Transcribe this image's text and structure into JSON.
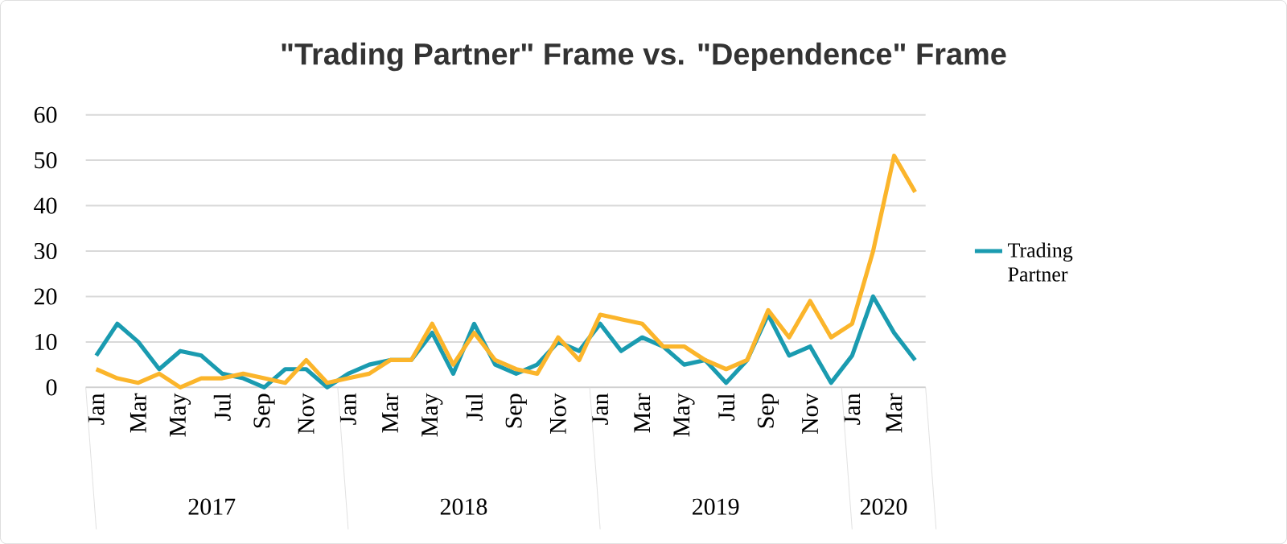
{
  "chart_data": {
    "type": "line",
    "title": "\"Trading Partner\" Frame vs. \"Dependence\" Frame",
    "categories": [
      "Jan",
      null,
      "Mar",
      null,
      "May",
      null,
      "Jul",
      null,
      "Sep",
      null,
      "Nov",
      null,
      "Jan",
      null,
      "Mar",
      null,
      "May",
      null,
      "Jul",
      null,
      "Sep",
      null,
      "Nov",
      null,
      "Jan",
      null,
      "Mar",
      null,
      "May",
      null,
      "Jul",
      null,
      "Sep",
      null,
      "Nov",
      null,
      "Jan",
      null,
      "Mar",
      null
    ],
    "series": [
      {
        "name": "Trading Partner",
        "color": "#1a9bb0",
        "values": [
          7,
          14,
          10,
          4,
          8,
          7,
          3,
          2,
          0,
          4,
          4,
          0,
          3,
          5,
          6,
          6,
          12,
          3,
          14,
          5,
          3,
          5,
          10,
          8,
          14,
          8,
          11,
          9,
          5,
          6,
          1,
          6,
          16,
          7,
          9,
          1,
          7,
          20,
          12,
          6
        ]
      },
      {
        "color": "#fbb52b",
        "values": [
          4,
          2,
          1,
          3,
          0,
          2,
          2,
          3,
          2,
          1,
          6,
          1,
          2,
          3,
          6,
          6,
          14,
          5,
          12,
          6,
          4,
          3,
          11,
          6,
          16,
          15,
          14,
          9,
          9,
          6,
          4,
          6,
          17,
          11,
          19,
          11,
          14,
          30,
          51,
          43
        ]
      }
    ],
    "annotations": [
      "2017",
      "2018",
      "2019",
      "2020"
    ],
    "ylim": [
      0,
      60
    ],
    "yticks": [
      0,
      10,
      20,
      30,
      40,
      50,
      60
    ],
    "grid": "y",
    "legend": "right",
    "marker": "none",
    "line_style": "solid"
  }
}
